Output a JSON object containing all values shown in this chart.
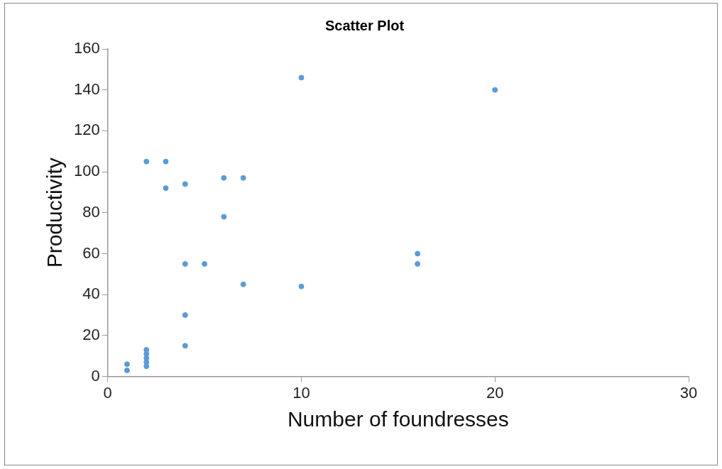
{
  "chart_data": {
    "type": "scatter",
    "title": "Scatter Plot",
    "xlabel": "Number of foundresses",
    "ylabel": "Productivity",
    "series": [
      {
        "color": "#5b9bd5",
        "x": [
          1,
          1,
          2,
          2,
          2,
          2,
          2,
          2,
          3,
          3,
          4,
          6,
          7,
          6,
          4,
          5,
          7,
          10,
          16,
          16,
          10,
          20,
          4,
          4
        ],
        "values": [
          3,
          6,
          5,
          7,
          9,
          11,
          13,
          105,
          105,
          92,
          94,
          97,
          97,
          78,
          55,
          55,
          45,
          44,
          60,
          55,
          146,
          140,
          30,
          15
        ]
      }
    ],
    "xlim": [
      0,
      30
    ],
    "xticks": [
      0,
      10,
      20,
      30
    ],
    "ylim": [
      0,
      160
    ],
    "yticks": [
      0,
      20,
      40,
      60,
      80,
      100,
      120,
      140,
      160
    ],
    "grid": false,
    "legend": false,
    "marker": "circle"
  }
}
